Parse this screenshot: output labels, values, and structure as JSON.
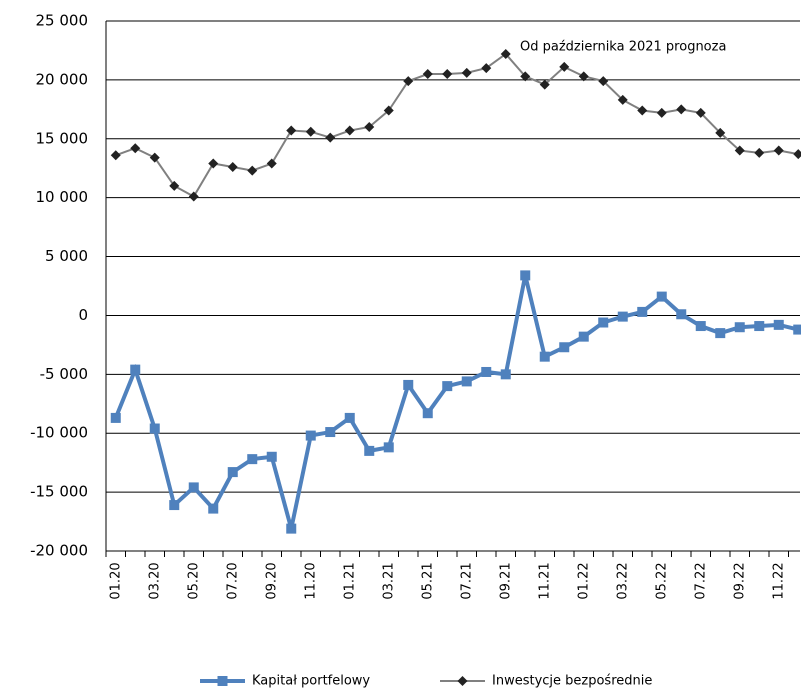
{
  "chart_data": {
    "type": "line",
    "annotation": "Od października 2021 prognoza",
    "categories": [
      "01.20",
      null,
      "03.20",
      null,
      "05.20",
      null,
      "07.20",
      null,
      "09.20",
      null,
      "11.20",
      null,
      "01.21",
      null,
      "03.21",
      null,
      "05.21",
      null,
      "07.21",
      null,
      "09.21",
      null,
      "11.21",
      null,
      "01.22",
      null,
      "03.22",
      null,
      "05.22",
      null,
      "07.22",
      null,
      "09.22",
      null,
      "11.22",
      null
    ],
    "series": [
      {
        "name": "Kapitał portfelowy",
        "color": "#4f81bd",
        "values": [
          -8700,
          -4600,
          -9600,
          -16100,
          -14600,
          -16400,
          -13300,
          -12200,
          -12000,
          -18100,
          -10200,
          -9900,
          -8700,
          -11500,
          -11200,
          -5900,
          -8300,
          -6000,
          -5600,
          -4800,
          -5000,
          3400,
          -3500,
          -2700,
          -1800,
          -600,
          -100,
          300,
          1600,
          100,
          -900,
          -1500,
          -1000,
          -900,
          -800,
          -1200
        ]
      },
      {
        "name": "Inwestycje bezpośrednie",
        "color": "#808080",
        "values": [
          13600,
          14200,
          13400,
          11000,
          10100,
          12900,
          12600,
          12300,
          12900,
          15700,
          15600,
          15100,
          15700,
          16000,
          17400,
          19900,
          20500,
          20500,
          20600,
          21000,
          22200,
          20300,
          19600,
          21100,
          20300,
          19900,
          18300,
          17400,
          17200,
          17500,
          17200,
          15500,
          14000,
          13800,
          14000,
          13700
        ]
      }
    ],
    "ylim": [
      -20000,
      25000
    ],
    "yticks": [
      {
        "value": -20000,
        "label": "-20 000"
      },
      {
        "value": -15000,
        "label": "-15 000"
      },
      {
        "value": -10000,
        "label": "-10 000"
      },
      {
        "value": -5000,
        "label": "-5 000"
      },
      0,
      {
        "value": 5000,
        "label": "5 000"
      },
      {
        "value": 10000,
        "label": "10 000"
      },
      {
        "value": 15000,
        "label": "15 000"
      },
      {
        "value": 20000,
        "label": "20 000"
      },
      {
        "value": 25000,
        "label": "25 000"
      }
    ],
    "grid": true
  }
}
